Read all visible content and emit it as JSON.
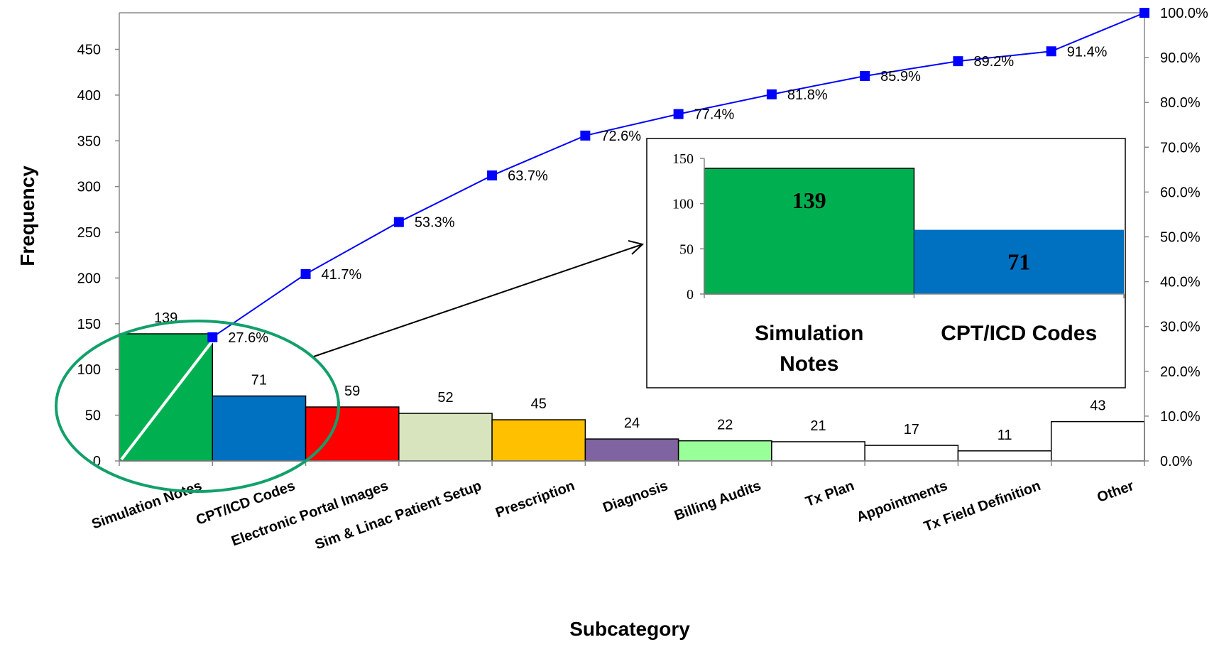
{
  "chart_data": {
    "type": "bar",
    "subtype": "pareto",
    "xlabel": "Subcategory",
    "ylabel": "Frequency",
    "ylim": [
      0,
      490
    ],
    "yticks": [
      0,
      50,
      100,
      150,
      200,
      250,
      300,
      350,
      400,
      450
    ],
    "y2lim": [
      0,
      100
    ],
    "y2ticks": [
      "0.0%",
      "10.0%",
      "20.0%",
      "30.0%",
      "40.0%",
      "50.0%",
      "60.0%",
      "70.0%",
      "80.0%",
      "90.0%",
      "100.0%"
    ],
    "categories": [
      "Simulation Notes",
      "CPT/ICD Codes",
      "Electronic Portal Images",
      "Sim & Linac Patient Setup",
      "Prescription",
      "Diagnosis",
      "Billing Audits",
      "Tx Plan",
      "Appointments",
      "Tx Field Definition",
      "Other"
    ],
    "values": [
      139,
      71,
      59,
      52,
      45,
      24,
      22,
      21,
      17,
      11,
      43
    ],
    "bar_colors": [
      "#00B050",
      "#0070C0",
      "#FF0000",
      "#D7E4BD",
      "#FFC000",
      "#8064A2",
      "#99FF99",
      "#FFFFFF",
      "#FFFFFF",
      "#FFFFFF",
      "#FFFFFF"
    ],
    "cumulative_percent": [
      27.6,
      41.7,
      53.3,
      63.7,
      72.6,
      77.4,
      81.8,
      85.9,
      89.2,
      91.4,
      100.0
    ],
    "cumulative_labels": [
      "27.6%",
      "41.7%",
      "53.3%",
      "63.7%",
      "72.6%",
      "77.4%",
      "81.8%",
      "85.9%",
      "89.2%",
      "91.4%",
      "100.0%"
    ],
    "line_color": "#0000FF",
    "grid": false,
    "highlight": "green ellipse around the first two bars",
    "inset": {
      "type": "bar",
      "categories": [
        "Simulation Notes",
        "CPT/ICD Codes"
      ],
      "category_lines": [
        [
          "Simulation",
          "Notes"
        ],
        [
          "CPT/ICD Codes"
        ]
      ],
      "values": [
        139,
        71
      ],
      "value_labels": [
        "139",
        "71"
      ],
      "colors": [
        "#00B050",
        "#0070C0"
      ],
      "ylim": [
        0,
        150
      ],
      "yticks": [
        0,
        50,
        100,
        150
      ]
    }
  }
}
